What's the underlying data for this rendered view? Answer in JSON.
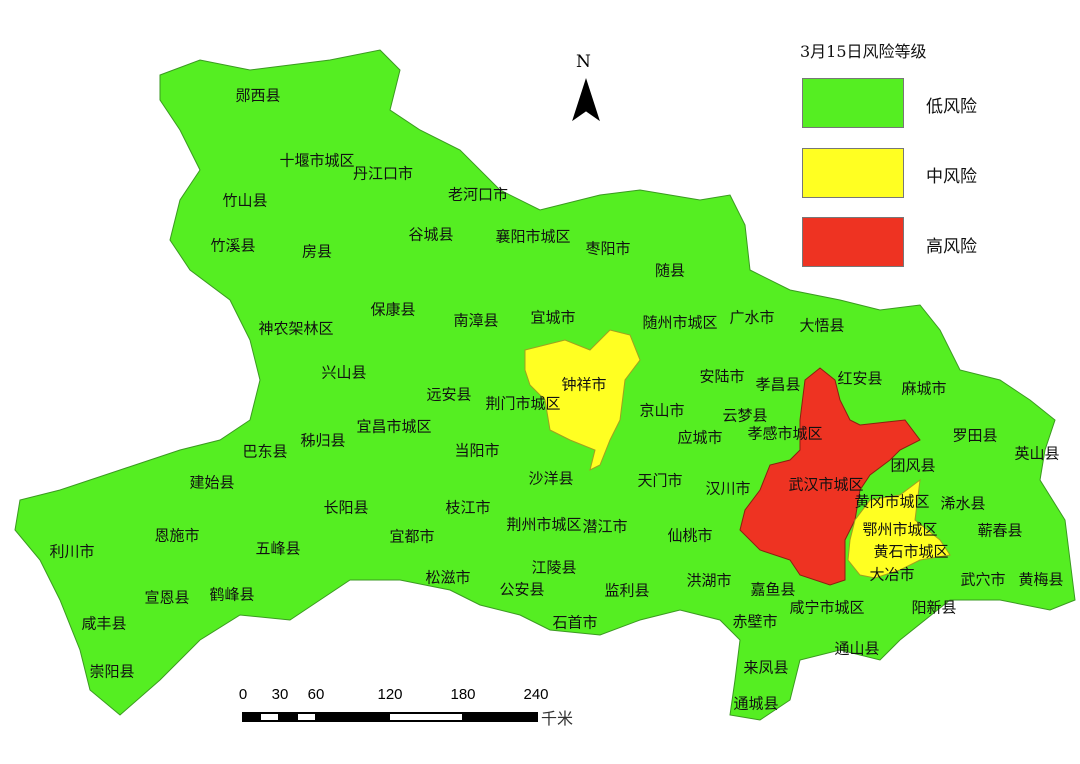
{
  "legend": {
    "title": "3月15日风险等级",
    "items": [
      {
        "label": "低风险",
        "color": "#55ee22"
      },
      {
        "label": "中风险",
        "color": "#ffff22"
      },
      {
        "label": "高风险",
        "color": "#ee3322"
      }
    ]
  },
  "north_arrow": {
    "label": "N"
  },
  "scale_bar": {
    "ticks": [
      "0",
      "30",
      "60",
      "120",
      "180",
      "240"
    ],
    "unit": "千米"
  },
  "risk_areas": {
    "high": [
      "武汉市城区"
    ],
    "medium": [
      "钟祥市",
      "鄂州市城区",
      "黄石市城区"
    ]
  },
  "labels": [
    "郧西县",
    "十堰市城区",
    "丹江口市",
    "竹山县",
    "老河口市",
    "竹溪县",
    "房县",
    "谷城县",
    "襄阳市城区",
    "枣阳市",
    "随县",
    "保康县",
    "南漳县",
    "宜城市",
    "随州市城区",
    "广水市",
    "大悟县",
    "神农架林区",
    "钟祥市",
    "安陆市",
    "孝昌县",
    "红安县",
    "麻城市",
    "兴山县",
    "远安县",
    "荆门市城区",
    "京山市",
    "云梦县",
    "应城市",
    "孝感市城区",
    "罗田县",
    "英山县",
    "巴东县",
    "秭归县",
    "宜昌市城区",
    "当阳市",
    "沙洋县",
    "天门市",
    "汉川市",
    "武汉市城区",
    "团风县",
    "黄冈市城区",
    "浠水县",
    "建始县",
    "长阳县",
    "枝江市",
    "荆州市城区",
    "潜江市",
    "仙桃市",
    "鄂州市城区",
    "蕲春县",
    "利川市",
    "恩施市",
    "五峰县",
    "宜都市",
    "江陵县",
    "黄石市城区",
    "大冶市",
    "宣恩县",
    "鹤峰县",
    "松滋市",
    "公安县",
    "监利县",
    "洪湖市",
    "嘉鱼县",
    "咸宁市城区",
    "阳新县",
    "武穴市",
    "黄梅县",
    "咸丰县",
    "石首市",
    "赤壁市",
    "通山县",
    "来凤县",
    "崇阳县",
    "通城县"
  ]
}
